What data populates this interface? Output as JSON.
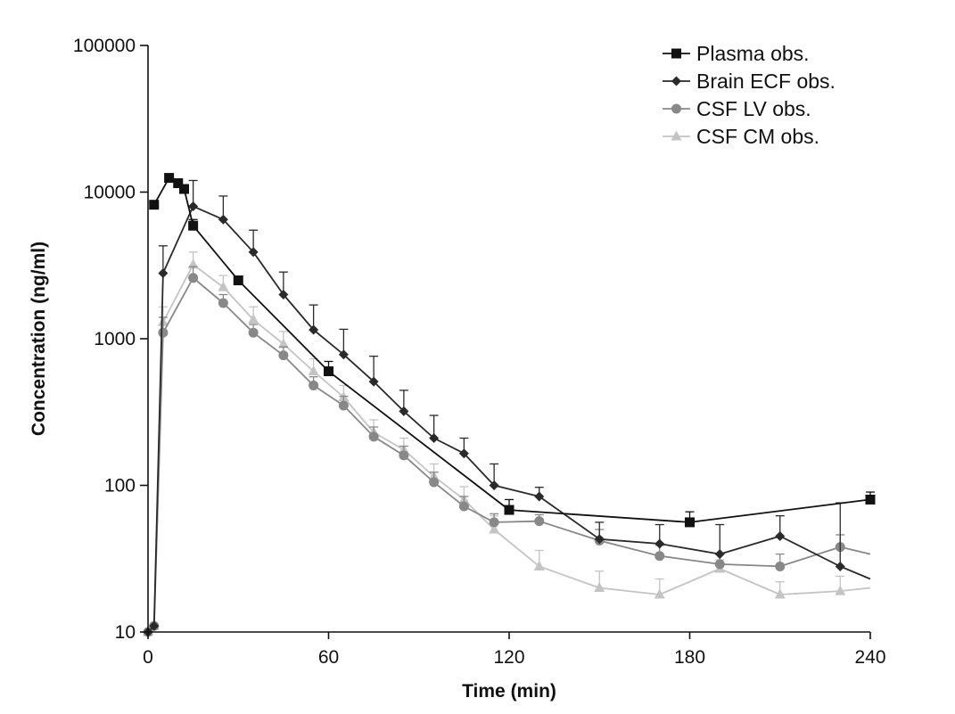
{
  "chart_data": {
    "type": "line",
    "xlabel": "Time (min)",
    "ylabel": "Concentration (ng/ml)",
    "xlim": [
      0,
      240
    ],
    "ylim": [
      10,
      100000
    ],
    "yscale": "log",
    "xticks": [
      0,
      60,
      120,
      180,
      240
    ],
    "xtick_labels": [
      "0",
      "60",
      "120",
      "180",
      "240"
    ],
    "yticks": [
      10,
      100,
      1000,
      10000,
      100000
    ],
    "ytick_labels": [
      "10",
      "100",
      "1000",
      "10000",
      "100000"
    ],
    "grid": false,
    "legend_position": "top-right",
    "series": [
      {
        "name": "Plasma obs.",
        "color": "#111111",
        "marker": "square",
        "x": [
          2,
          7,
          10,
          12,
          15,
          30,
          60,
          120,
          180,
          240
        ],
        "y": [
          8200,
          12500,
          11500,
          10500,
          5900,
          2500,
          600,
          68,
          56,
          80
        ],
        "err": [
          0,
          0,
          0,
          0,
          600,
          0,
          100,
          12,
          10,
          10
        ]
      },
      {
        "name": "Brain ECF obs.",
        "color": "#2a2a2a",
        "marker": "diamond",
        "x": [
          0,
          2,
          5,
          15,
          25,
          35,
          45,
          55,
          65,
          75,
          85,
          95,
          105,
          115,
          130,
          150,
          170,
          190,
          210,
          230,
          240
        ],
        "y": [
          10,
          11,
          2800,
          8000,
          6500,
          3900,
          2000,
          1150,
          780,
          510,
          320,
          210,
          165,
          100,
          84,
          43,
          40,
          34,
          45,
          28,
          23
        ],
        "err": [
          0,
          0,
          1500,
          4000,
          2900,
          1600,
          850,
          550,
          380,
          250,
          125,
          90,
          45,
          40,
          13,
          13,
          14,
          20,
          17,
          48,
          0
        ]
      },
      {
        "name": "CSF LV obs.",
        "color": "#888888",
        "marker": "circle",
        "x": [
          0,
          2,
          5,
          15,
          25,
          35,
          45,
          55,
          65,
          75,
          85,
          95,
          105,
          115,
          130,
          150,
          170,
          190,
          210,
          230,
          240
        ],
        "y": [
          10,
          11,
          1100,
          2600,
          1750,
          1100,
          770,
          480,
          350,
          215,
          160,
          105,
          72,
          56,
          57,
          42,
          33,
          29,
          28,
          38,
          34
        ],
        "err": [
          0,
          0,
          300,
          500,
          250,
          150,
          110,
          70,
          55,
          35,
          25,
          18,
          12,
          8,
          6,
          8,
          6,
          5,
          6,
          8,
          0
        ]
      },
      {
        "name": "CSF CM obs.",
        "color": "#c4c4c4",
        "marker": "triangle",
        "x": [
          0,
          2,
          5,
          15,
          25,
          35,
          45,
          55,
          65,
          75,
          85,
          95,
          105,
          115,
          130,
          150,
          170,
          190,
          210,
          230,
          240
        ],
        "y": [
          10,
          11,
          1300,
          3200,
          2250,
          1350,
          920,
          600,
          400,
          230,
          175,
          115,
          80,
          50,
          28,
          20,
          18,
          27,
          18,
          19,
          20
        ],
        "err": [
          0,
          0,
          350,
          700,
          450,
          300,
          200,
          130,
          80,
          50,
          35,
          25,
          18,
          12,
          8,
          6,
          5,
          4,
          4,
          5,
          0
        ]
      }
    ]
  }
}
